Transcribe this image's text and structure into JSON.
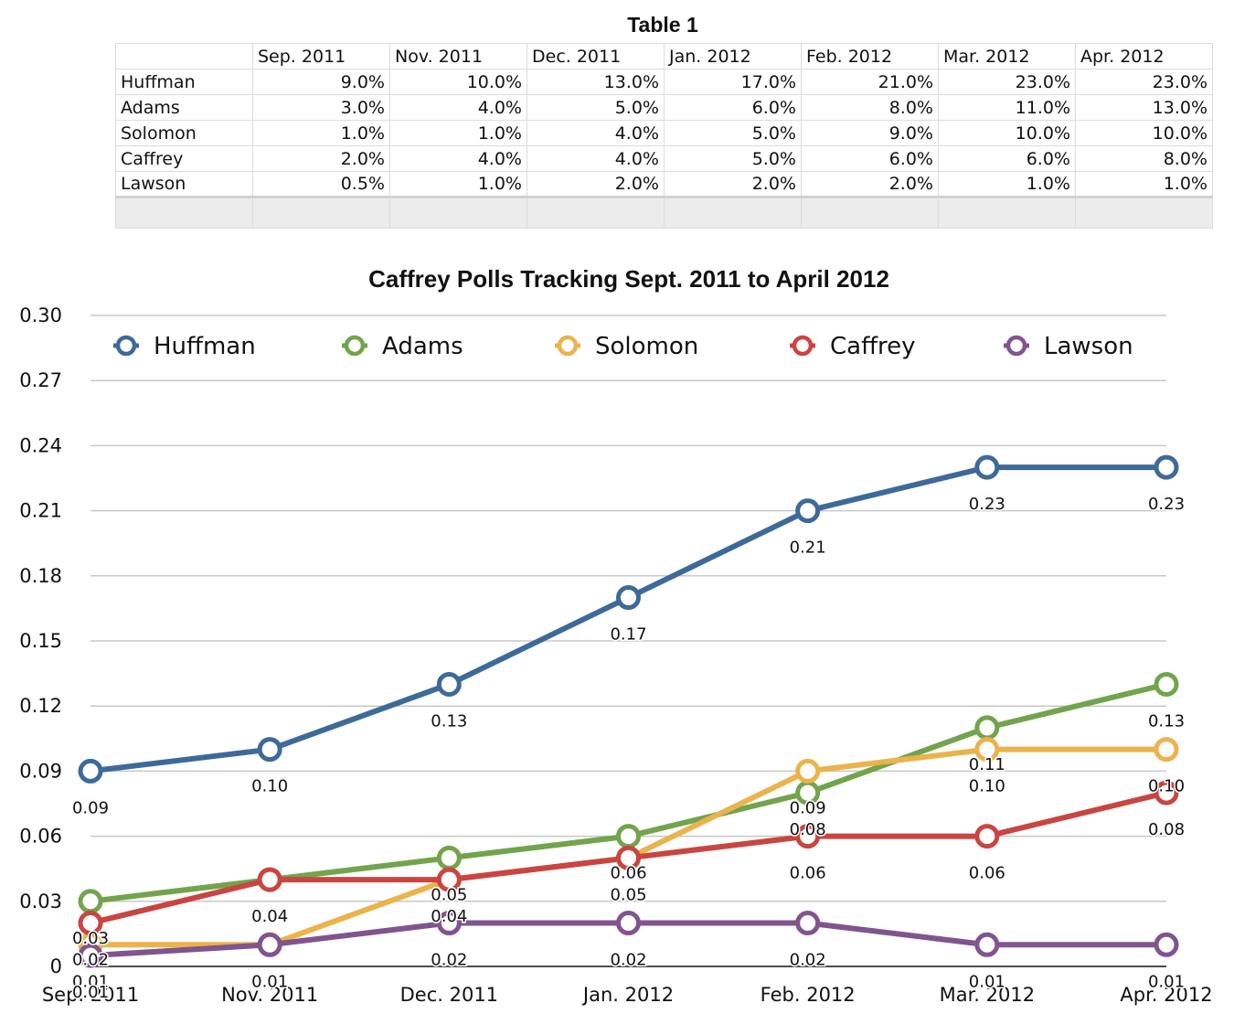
{
  "table": {
    "title": "Table 1",
    "columns": [
      "Sep. 2011",
      "Nov. 2011",
      "Dec. 2011",
      "Jan. 2012",
      "Feb. 2012",
      "Mar. 2012",
      "Apr. 2012"
    ],
    "rows": [
      {
        "label": "Huffman",
        "cells": [
          "9.0%",
          "10.0%",
          "13.0%",
          "17.0%",
          "21.0%",
          "23.0%",
          "23.0%"
        ]
      },
      {
        "label": "Adams",
        "cells": [
          "3.0%",
          "4.0%",
          "5.0%",
          "6.0%",
          "8.0%",
          "11.0%",
          "13.0%"
        ]
      },
      {
        "label": "Solomon",
        "cells": [
          "1.0%",
          "1.0%",
          "4.0%",
          "5.0%",
          "9.0%",
          "10.0%",
          "10.0%"
        ]
      },
      {
        "label": "Caffrey",
        "cells": [
          "2.0%",
          "4.0%",
          "4.0%",
          "5.0%",
          "6.0%",
          "6.0%",
          "8.0%"
        ]
      },
      {
        "label": "Lawson",
        "cells": [
          "0.5%",
          "1.0%",
          "2.0%",
          "2.0%",
          "2.0%",
          "1.0%",
          "1.0%"
        ]
      }
    ]
  },
  "chart_data": {
    "type": "line",
    "title": "Caffrey Polls Tracking Sept. 2011 to April 2012",
    "categories": [
      "Sep. 2011",
      "Nov. 2011",
      "Dec. 2011",
      "Jan. 2012",
      "Feb. 2012",
      "Mar. 2012",
      "Apr. 2012"
    ],
    "ylim": [
      0,
      0.3
    ],
    "yticks": [
      "0",
      "0.03",
      "0.06",
      "0.09",
      "0.12",
      "0.15",
      "0.18",
      "0.21",
      "0.24",
      "0.27",
      "0.30"
    ],
    "grid": true,
    "legend_position": "top",
    "series": [
      {
        "name": "Huffman",
        "color": "#3d6a99",
        "values": [
          0.09,
          0.1,
          0.13,
          0.17,
          0.21,
          0.23,
          0.23
        ],
        "labels": [
          "0.09",
          "0.10",
          "0.13",
          "0.17",
          "0.21",
          "0.23",
          "0.23"
        ]
      },
      {
        "name": "Adams",
        "color": "#72a44c",
        "values": [
          0.03,
          0.04,
          0.05,
          0.06,
          0.08,
          0.11,
          0.13
        ],
        "labels": [
          "0.03",
          "0.04",
          "0.05",
          "0.06",
          "0.08",
          "0.11",
          "0.13"
        ]
      },
      {
        "name": "Solomon",
        "color": "#ebb34c",
        "values": [
          0.01,
          0.01,
          0.04,
          0.05,
          0.09,
          0.1,
          0.1
        ],
        "labels": [
          "0.01",
          "0.01",
          "0.04",
          "0.05",
          "0.09",
          "0.10",
          "0.10"
        ]
      },
      {
        "name": "Caffrey",
        "color": "#c94542",
        "values": [
          0.02,
          0.04,
          0.04,
          0.05,
          0.06,
          0.06,
          0.08
        ],
        "labels": [
          "0.02",
          "0.04",
          "0.04",
          "0.05",
          "0.06",
          "0.06",
          "0.08"
        ]
      },
      {
        "name": "Lawson",
        "color": "#81548f",
        "values": [
          0.005,
          0.01,
          0.02,
          0.02,
          0.02,
          0.01,
          0.01
        ],
        "labels": [
          "0.01",
          "0.01",
          "0.02",
          "0.02",
          "0.02",
          "0.01",
          "0.01"
        ]
      }
    ]
  }
}
